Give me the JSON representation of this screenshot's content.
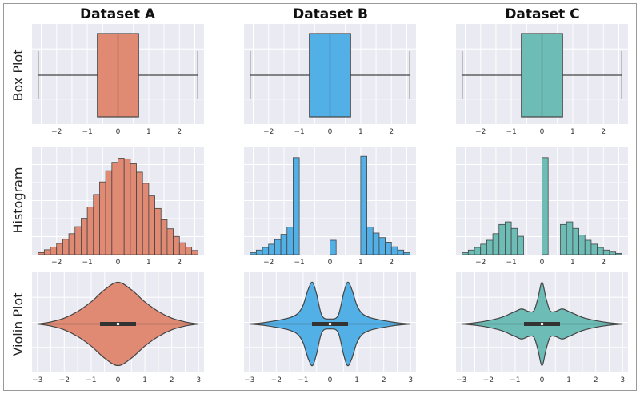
{
  "column_titles": [
    "Dataset A",
    "Dataset B",
    "Dataset C"
  ],
  "row_titles": [
    "Box Plot",
    "Histogram",
    "Violin Plot"
  ],
  "colors": {
    "A": "#e08a74",
    "B": "#52b0e6",
    "C": "#6dbdb6",
    "edge": "#444444",
    "panel": "#eaeaf2"
  },
  "chart_data": [
    {
      "type": "box",
      "dataset": "Dataset A",
      "row": "Box Plot",
      "whisker_low": -2.6,
      "q1": -0.67,
      "median": 0.0,
      "q3": 0.67,
      "whisker_high": 2.6,
      "xlim": [
        -2.8,
        2.8
      ],
      "xticks": [
        -2,
        -1,
        0,
        1,
        2
      ],
      "grid": true
    },
    {
      "type": "box",
      "dataset": "Dataset B",
      "row": "Box Plot",
      "whisker_low": -2.6,
      "q1": -0.67,
      "median": 0.0,
      "q3": 0.67,
      "whisker_high": 2.6,
      "xlim": [
        -2.8,
        2.8
      ],
      "xticks": [
        -2,
        -1,
        0,
        1,
        2
      ],
      "grid": true
    },
    {
      "type": "box",
      "dataset": "Dataset C",
      "row": "Box Plot",
      "whisker_low": -2.6,
      "q1": -0.67,
      "median": 0.0,
      "q3": 0.67,
      "whisker_high": 2.6,
      "xlim": [
        -2.8,
        2.8
      ],
      "xticks": [
        -2,
        -1,
        0,
        1,
        2
      ],
      "grid": true
    },
    {
      "type": "histogram",
      "dataset": "Dataset A",
      "row": "Histogram",
      "bin_start": -2.6,
      "bin_width": 0.2,
      "ylim": [
        0,
        150
      ],
      "counts": [
        3,
        7,
        11,
        16,
        22,
        30,
        40,
        52,
        68,
        86,
        104,
        120,
        132,
        138,
        137,
        130,
        118,
        102,
        84,
        66,
        50,
        37,
        26,
        17,
        11,
        6
      ],
      "xlim": [
        -2.8,
        2.8
      ],
      "xticks": [
        -2,
        -1,
        0,
        1,
        2
      ],
      "grid": true
    },
    {
      "type": "histogram",
      "dataset": "Dataset B",
      "row": "Histogram",
      "bin_start": -2.6,
      "bin_width": 0.2,
      "ylim": [
        0,
        160
      ],
      "counts": [
        3,
        7,
        11,
        16,
        23,
        31,
        42,
        148,
        0,
        0,
        0,
        0,
        0,
        22,
        0,
        0,
        0,
        0,
        150,
        42,
        33,
        26,
        19,
        12,
        7,
        3
      ],
      "xlim": [
        -2.8,
        2.8
      ],
      "xticks": [
        -2,
        -1,
        0,
        1,
        2
      ],
      "grid": true
    },
    {
      "type": "histogram",
      "dataset": "Dataset C",
      "row": "Histogram",
      "bin_start": -2.6,
      "bin_width": 0.2,
      "ylim": [
        0,
        160
      ],
      "counts": [
        3,
        7,
        11,
        16,
        22,
        32,
        46,
        50,
        40,
        28,
        0,
        0,
        0,
        148,
        0,
        0,
        46,
        50,
        40,
        30,
        22,
        16,
        11,
        7,
        4,
        2
      ],
      "xlim": [
        -2.8,
        2.8
      ],
      "xticks": [
        -2,
        -1,
        0,
        1,
        2
      ],
      "grid": true
    },
    {
      "type": "violin",
      "dataset": "Dataset A",
      "row": "Violin Plot",
      "density_x": [
        -3,
        -2.5,
        -2,
        -1.5,
        -1,
        -0.5,
        0,
        0.5,
        1,
        1.5,
        2,
        2.5,
        3
      ],
      "density": [
        0.0,
        0.05,
        0.14,
        0.3,
        0.53,
        0.82,
        1.0,
        0.82,
        0.53,
        0.3,
        0.14,
        0.05,
        0.0
      ],
      "q1": -0.67,
      "median": 0.0,
      "q3": 0.67,
      "xlim": [
        -3.2,
        3.2
      ],
      "xticks": [
        -3,
        -2,
        -1,
        0,
        1,
        2,
        3
      ],
      "grid": true
    },
    {
      "type": "violin",
      "dataset": "Dataset B",
      "row": "Violin Plot",
      "density_x": [
        -3,
        -2.5,
        -2,
        -1.5,
        -1.2,
        -1,
        -0.8,
        -0.65,
        -0.5,
        -0.3,
        0,
        0.3,
        0.5,
        0.65,
        0.8,
        1,
        1.2,
        1.5,
        2,
        2.5,
        3
      ],
      "density": [
        0.0,
        0.03,
        0.08,
        0.15,
        0.25,
        0.45,
        0.85,
        1.0,
        0.72,
        0.2,
        0.12,
        0.2,
        0.72,
        1.0,
        0.85,
        0.45,
        0.25,
        0.15,
        0.08,
        0.03,
        0.0
      ],
      "q1": -0.67,
      "median": 0.0,
      "q3": 0.67,
      "xlim": [
        -3.2,
        3.2
      ],
      "xticks": [
        -3,
        -2,
        -1,
        0,
        1,
        2,
        3
      ],
      "grid": true
    },
    {
      "type": "violin",
      "dataset": "Dataset C",
      "row": "Violin Plot",
      "density_x": [
        -3,
        -2.5,
        -2,
        -1.5,
        -1,
        -0.75,
        -0.5,
        -0.3,
        -0.15,
        0,
        0.15,
        0.3,
        0.5,
        0.75,
        1,
        1.5,
        2,
        2.5,
        3
      ],
      "density": [
        0.0,
        0.03,
        0.08,
        0.16,
        0.3,
        0.36,
        0.3,
        0.32,
        0.62,
        1.0,
        0.62,
        0.32,
        0.3,
        0.36,
        0.3,
        0.16,
        0.08,
        0.03,
        0.0
      ],
      "q1": -0.67,
      "median": 0.0,
      "q3": 0.67,
      "xlim": [
        -3.2,
        3.2
      ],
      "xticks": [
        -3,
        -2,
        -1,
        0,
        1,
        2,
        3
      ],
      "grid": true
    }
  ]
}
